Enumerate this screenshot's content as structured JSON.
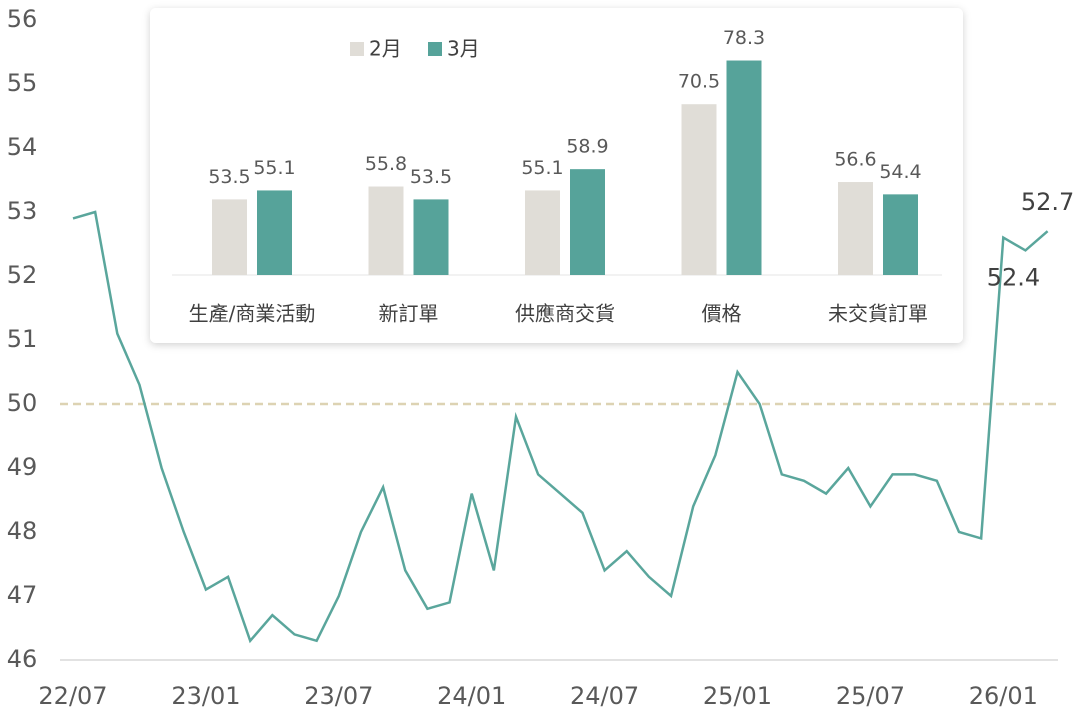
{
  "chart_data": [
    {
      "type": "line",
      "categories": [
        "22/07",
        null,
        null,
        null,
        null,
        null,
        "23/01",
        null,
        null,
        null,
        null,
        null,
        "23/07",
        null,
        null,
        null,
        null,
        null,
        "24/01",
        null,
        null,
        null,
        null,
        null,
        "24/07",
        null,
        null,
        null,
        null,
        null,
        "25/01",
        null,
        null,
        null,
        null,
        null,
        "25/07",
        null,
        null,
        null,
        null,
        null,
        "26/01",
        null,
        null
      ],
      "series": [
        {
          "color": "#5aa69c",
          "values": [
            52.9,
            53.0,
            51.1,
            50.3,
            49.0,
            48.0,
            47.1,
            47.3,
            46.3,
            46.7,
            46.4,
            46.3,
            47.0,
            48.0,
            48.7,
            47.4,
            46.8,
            46.9,
            48.6,
            47.4,
            49.8,
            48.9,
            48.6,
            48.3,
            47.4,
            47.7,
            47.3,
            47.0,
            48.4,
            49.2,
            50.5,
            50.0,
            48.9,
            48.8,
            48.6,
            49.0,
            48.4,
            48.9,
            48.9,
            48.8,
            48.0,
            47.9,
            52.6,
            52.4,
            52.7
          ]
        }
      ],
      "labeled_points": [
        43,
        44
      ],
      "reference_line": {
        "value": 50,
        "color": "#ddd3b3",
        "dashed": true
      },
      "ylim": [
        46,
        56
      ],
      "yticks": [
        46,
        47,
        48,
        49,
        50,
        51,
        52,
        53,
        54,
        55,
        56
      ]
    },
    {
      "type": "bar",
      "categories": [
        "生產/商業活動",
        "新訂單",
        "供應商交貨",
        "價格",
        "未交貨訂單"
      ],
      "series": [
        {
          "name": "2月",
          "color": "#e0ddd7",
          "values": [
            53.5,
            55.8,
            55.1,
            70.5,
            56.6
          ]
        },
        {
          "name": "3月",
          "color": "#56a39a",
          "values": [
            55.1,
            53.5,
            58.9,
            78.3,
            54.4
          ]
        }
      ],
      "ylim": [
        40,
        80
      ],
      "legend": "top-left"
    }
  ]
}
